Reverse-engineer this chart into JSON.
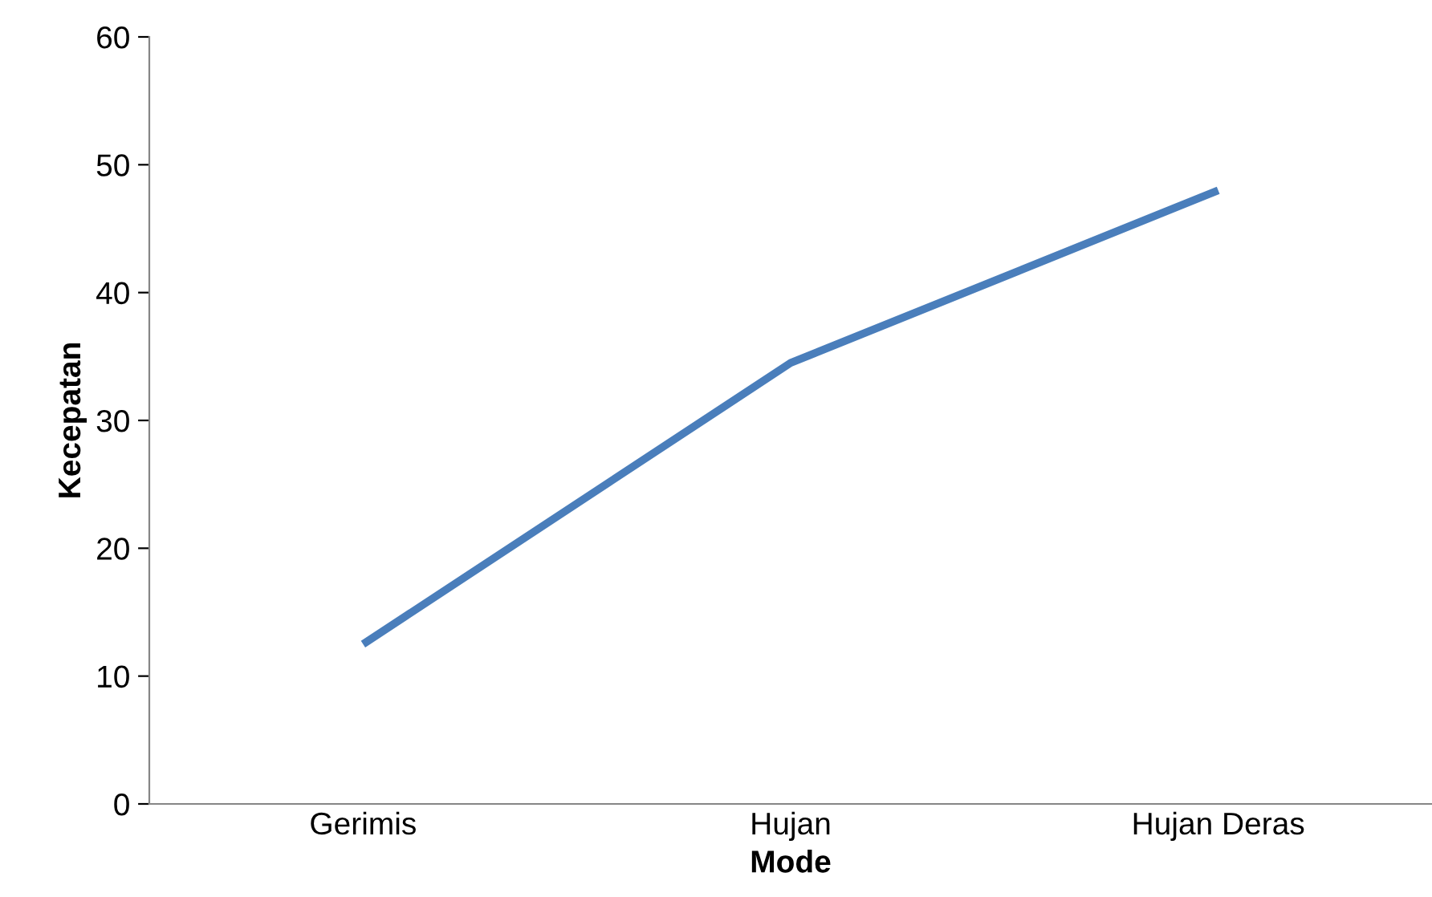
{
  "chart_data": {
    "type": "line",
    "xlabel": "Mode",
    "ylabel": "Kecepatan",
    "categories": [
      "Gerimis",
      "Hujan",
      "Hujan Deras"
    ],
    "series": [
      {
        "color": "#4a7ebb",
        "values": [
          12.5,
          34.5,
          48
        ]
      }
    ],
    "ylim": [
      0,
      60
    ],
    "yticks": [
      0,
      10,
      20,
      30,
      40,
      50,
      60
    ],
    "grid": false,
    "legend": false,
    "marker": "none",
    "line_style": "solid"
  }
}
